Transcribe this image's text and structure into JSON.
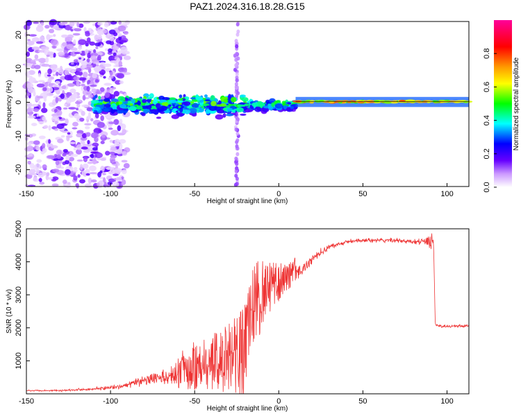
{
  "title": "PAZ1.2024.316.18.28.G15",
  "chart_data": [
    {
      "type": "heatmap",
      "xlabel": "Height of straight line (km)",
      "ylabel": "Frequency (Hz)",
      "xlim": [
        -150,
        113
      ],
      "ylim": [
        -25,
        24
      ],
      "xticks": [
        -150,
        -100,
        -50,
        0,
        50,
        100
      ],
      "yticks": [
        -20,
        -10,
        0,
        10,
        20
      ],
      "colorbar": {
        "label": "Normalized spectral amplitude",
        "range": [
          0,
          1
        ],
        "ticks": [
          "0.0",
          "0.2",
          "0.4",
          "0.6",
          "0.8"
        ],
        "colormap": "rainbow (white-violet-blue-cyan-green-yellow-red-magenta)"
      },
      "grid": false
    },
    {
      "type": "line",
      "xlabel": "Height of straight line (km)",
      "ylabel": "SNR (10 * v/v)",
      "xlim": [
        -150,
        113
      ],
      "ylim": [
        0,
        5000
      ],
      "xticks": [
        -150,
        -100,
        -50,
        0,
        50,
        100
      ],
      "yticks": [
        1000,
        2000,
        3000,
        4000,
        5000
      ],
      "color": "#ee3333",
      "x": [
        -150,
        -130,
        -110,
        -95,
        -85,
        -75,
        -65,
        -55,
        -45,
        -35,
        -25,
        -20,
        -15,
        -10,
        -5,
        0,
        5,
        10,
        15,
        20,
        25,
        30,
        40,
        50,
        60,
        70,
        80,
        90,
        92,
        93,
        95,
        100,
        105,
        113
      ],
      "y": [
        100,
        100,
        150,
        200,
        350,
        450,
        500,
        600,
        650,
        700,
        800,
        900,
        2200,
        2700,
        3000,
        3200,
        3400,
        3650,
        3800,
        4100,
        4300,
        4450,
        4600,
        4650,
        4650,
        4650,
        4600,
        4600,
        4700,
        2100,
        2050,
        2050,
        2050,
        2050
      ],
      "noise": [
        30,
        40,
        60,
        100,
        180,
        300,
        450,
        600,
        750,
        850,
        1100,
        1300,
        1200,
        1000,
        700,
        600,
        450,
        350,
        250,
        200,
        150,
        120,
        100,
        90,
        90,
        90,
        100,
        250,
        300,
        60,
        60,
        60,
        60,
        60
      ],
      "grid": false
    }
  ]
}
